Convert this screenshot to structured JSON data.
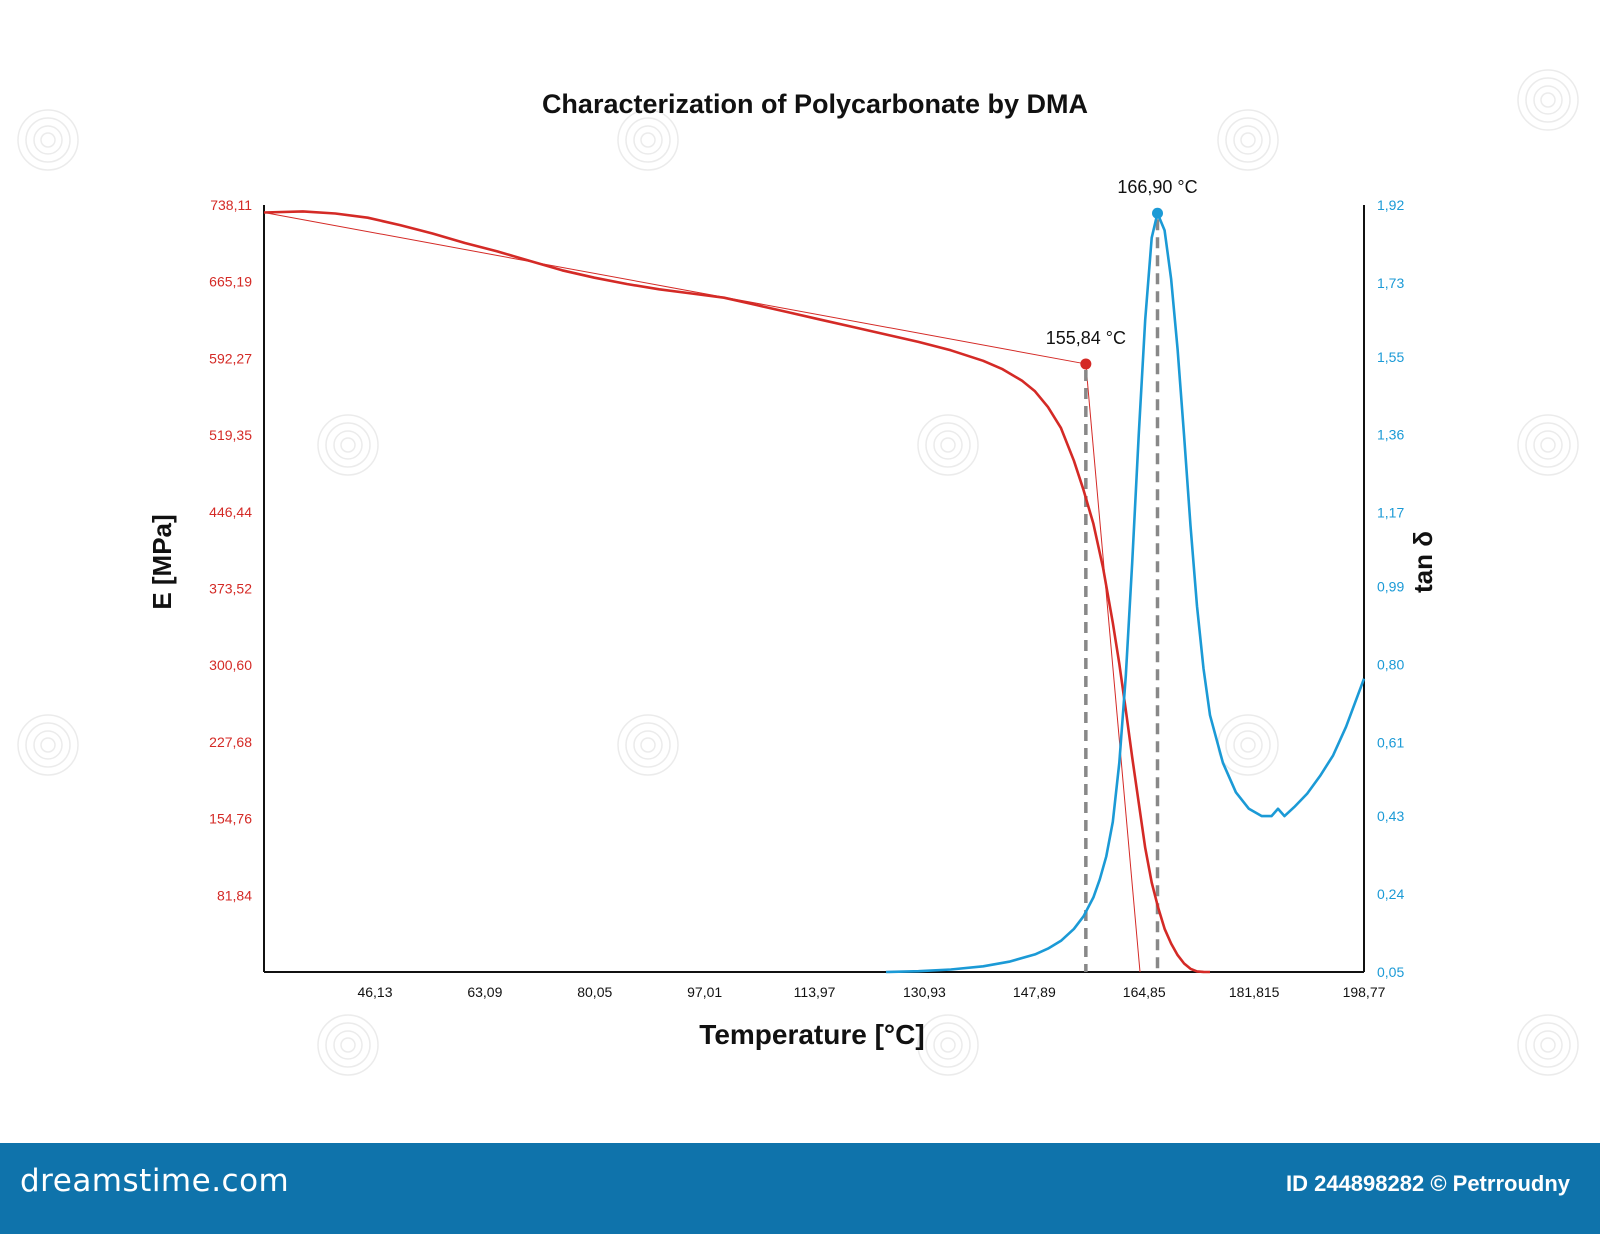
{
  "chart_data": {
    "type": "line",
    "title": "Characterization of Polycarbonate by DMA",
    "xlabel": "Temperature [°C]",
    "ylabel_left": "E [MPa]",
    "ylabel_right": "tan δ",
    "xlim": [
      29.0,
      198.77
    ],
    "ylim_left": [
      8.92,
      738.11
    ],
    "ylim_right": [
      0.05,
      1.92
    ],
    "x_ticks": [
      "46,13",
      "63,09",
      "80,05",
      "97,01",
      "113,97",
      "130,93",
      "147,89",
      "164,85",
      "181,815",
      "198,77"
    ],
    "y_left_ticks": [
      "738,11",
      "665,19",
      "592,27",
      "519,35",
      "446,44",
      "373,52",
      "300,60",
      "227,68",
      "154,76",
      "81,84"
    ],
    "y_right_ticks": [
      "1,92",
      "1,73",
      "1,55",
      "1,36",
      "1,17",
      "0,99",
      "0,80",
      "0,61",
      "0,43",
      "0,24",
      "0,05"
    ],
    "grid": false,
    "colors": {
      "storage_modulus": "#d42a26",
      "tan_delta": "#1b9ad6",
      "marker_line": "#888888"
    },
    "series": [
      {
        "axis": "left",
        "x": [
          29.0,
          35.0,
          40.0,
          45.0,
          50.0,
          55.0,
          60.0,
          65.0,
          70.0,
          75.0,
          80.0,
          85.0,
          90.0,
          95.0,
          100.0,
          105.0,
          110.0,
          115.0,
          120.0,
          125.0,
          130.0,
          135.0,
          140.0,
          143.0,
          146.0,
          148.0,
          150.0,
          152.0,
          154.0,
          155.5,
          157.0,
          158.5,
          160.0,
          161.0,
          162.0,
          163.0,
          164.0,
          165.0,
          166.0,
          167.0,
          168.0,
          169.0,
          170.0,
          171.0,
          172.0,
          173.0,
          174.0,
          175.0
        ],
        "y": [
          731.0,
          732.0,
          730.0,
          726.0,
          719.0,
          711.0,
          702.0,
          694.0,
          685.0,
          676.0,
          669.0,
          663.0,
          658.0,
          654.0,
          650.0,
          643.0,
          636.0,
          629.0,
          622.0,
          615.0,
          608.0,
          600.0,
          590.0,
          582.0,
          571.0,
          561.0,
          546.0,
          526.0,
          495.0,
          467.0,
          435.0,
          393.0,
          341.0,
          302.0,
          258.0,
          213.0,
          170.0,
          127.0,
          94.0,
          70.0,
          50.0,
          36.0,
          25.0,
          17.0,
          12.0,
          9.5,
          9.0,
          8.92
        ]
      },
      {
        "axis": "right",
        "x": [
          125.0,
          130.0,
          135.0,
          140.0,
          144.0,
          148.0,
          150.0,
          152.0,
          154.0,
          155.5,
          157.0,
          158.0,
          159.0,
          160.0,
          161.0,
          162.0,
          163.0,
          164.0,
          165.0,
          166.0,
          166.9,
          168.0,
          169.0,
          170.0,
          171.0,
          172.0,
          173.0,
          174.0,
          175.0,
          177.0,
          179.0,
          181.0,
          183.0,
          184.5,
          185.5,
          186.5,
          188.0,
          190.0,
          192.0,
          194.0,
          196.0,
          198.77
        ],
        "y": [
          0.05,
          0.052,
          0.056,
          0.064,
          0.075,
          0.093,
          0.107,
          0.126,
          0.155,
          0.186,
          0.232,
          0.276,
          0.332,
          0.416,
          0.56,
          0.772,
          1.048,
          1.358,
          1.64,
          1.84,
          1.9,
          1.858,
          1.74,
          1.568,
          1.357,
          1.138,
          0.942,
          0.79,
          0.676,
          0.56,
          0.488,
          0.448,
          0.43,
          0.43,
          0.448,
          0.43,
          0.452,
          0.485,
          0.528,
          0.578,
          0.648,
          0.765
        ]
      }
    ],
    "annotations": [
      {
        "label": "155,84 °C",
        "x": 155.84,
        "axis": "left",
        "y": 587.0,
        "color": "#d42a26"
      },
      {
        "label": "166,90 °C",
        "x": 166.9,
        "axis": "right",
        "y": 1.9,
        "color": "#1b9ad6"
      }
    ],
    "tangent_lines": [
      {
        "axis": "left",
        "x": [
          29.0,
          155.84
        ],
        "y": [
          731.0,
          587.0
        ]
      },
      {
        "axis": "left",
        "x": [
          155.84,
          164.2
        ],
        "y": [
          587.0,
          8.92
        ]
      }
    ]
  },
  "footer": {
    "logo": "dreamstime.com",
    "credit": "ID 244898282 © Petrroudny"
  }
}
